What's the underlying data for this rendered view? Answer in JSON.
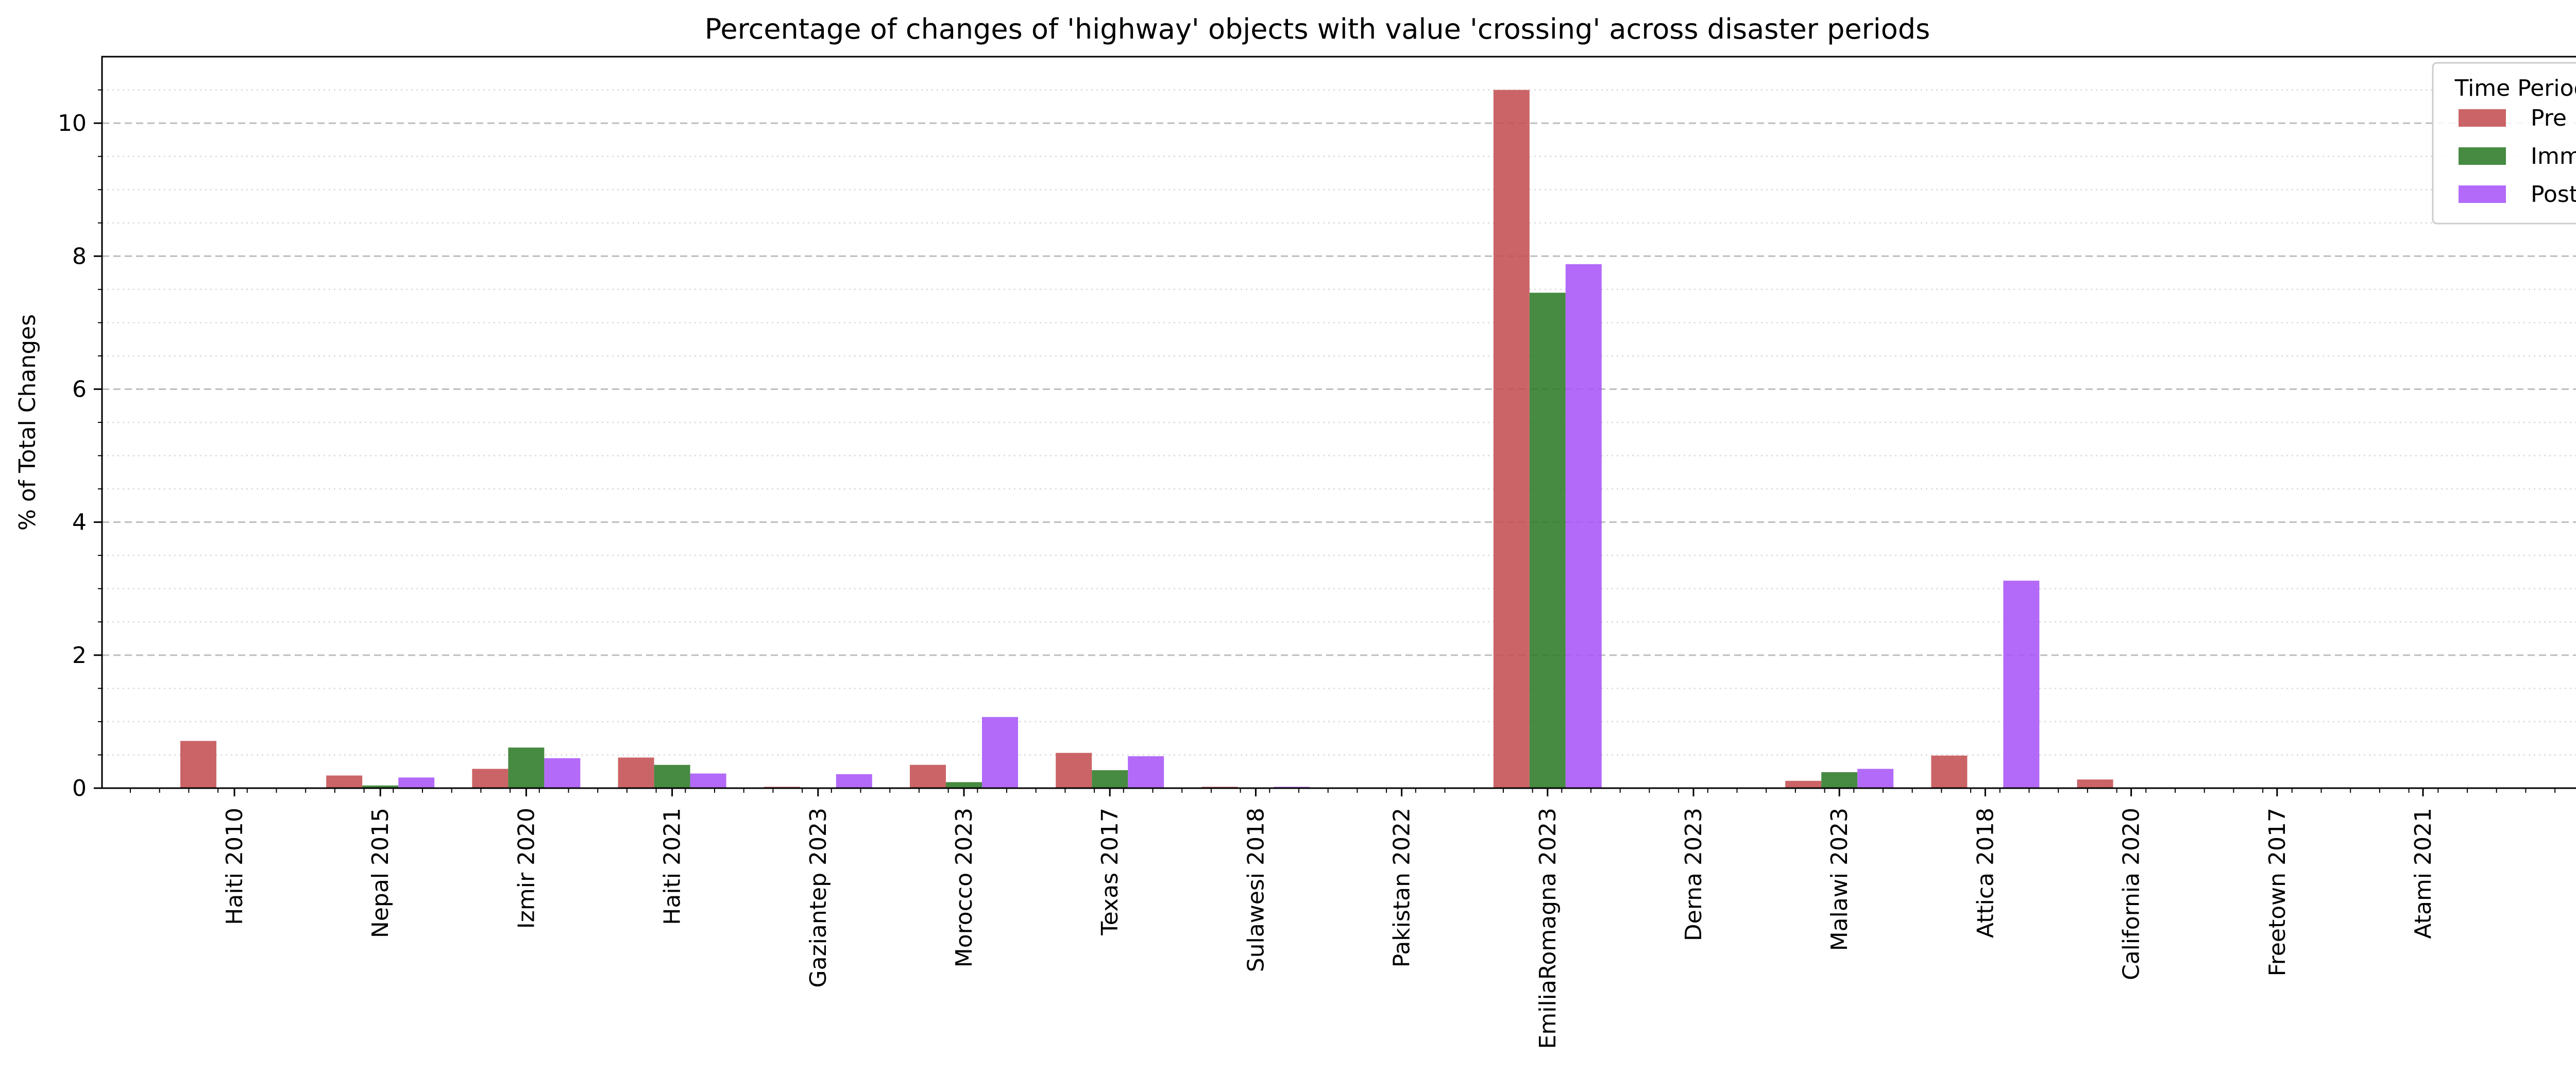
{
  "chart_data": {
    "type": "bar",
    "title": "Percentage of changes of 'highway' objects with value 'crossing' across disaster periods",
    "xlabel": "",
    "ylabel": "% of Total Changes",
    "ylim": [
      0,
      11
    ],
    "yticks": [
      "0",
      "2",
      "4",
      "6",
      "8",
      "10"
    ],
    "grid": "y (major dashed, minor dotted)",
    "legend_title": "Time Period",
    "legend_position": "top-right",
    "categories": [
      "Haiti 2010",
      "Nepal 2015",
      "Izmir 2020",
      "Haiti 2021",
      "Gaziantep 2023",
      "Morocco 2023",
      "Texas 2017",
      "Sulawesi 2018",
      "Pakistan 2022",
      "EmiliaRomagna 2023",
      "Derna 2023",
      "Malawi 2023",
      "Attica 2018",
      "California 2020",
      "Freetown 2017",
      "Atami 2021"
    ],
    "series": [
      {
        "name": "Pre",
        "color": "#c44e52",
        "values": [
          0.71,
          0.19,
          0.29,
          0.46,
          0.02,
          0.35,
          0.53,
          0.02,
          0.0,
          10.5,
          0.0,
          0.11,
          0.49,
          0.13,
          0.0,
          0.0
        ]
      },
      {
        "name": "Imm",
        "color": "#2d7a28",
        "values": [
          0.0,
          0.04,
          0.61,
          0.35,
          0.0,
          0.09,
          0.27,
          0.0,
          0.0,
          7.45,
          0.0,
          0.24,
          0.0,
          0.0,
          0.0,
          0.0
        ]
      },
      {
        "name": "Post",
        "color": "#a855f7",
        "values": [
          0.0,
          0.16,
          0.45,
          0.22,
          0.21,
          1.07,
          0.48,
          0.02,
          0.01,
          7.88,
          0.0,
          0.29,
          3.12,
          0.0,
          0.0,
          0.0
        ]
      }
    ]
  }
}
